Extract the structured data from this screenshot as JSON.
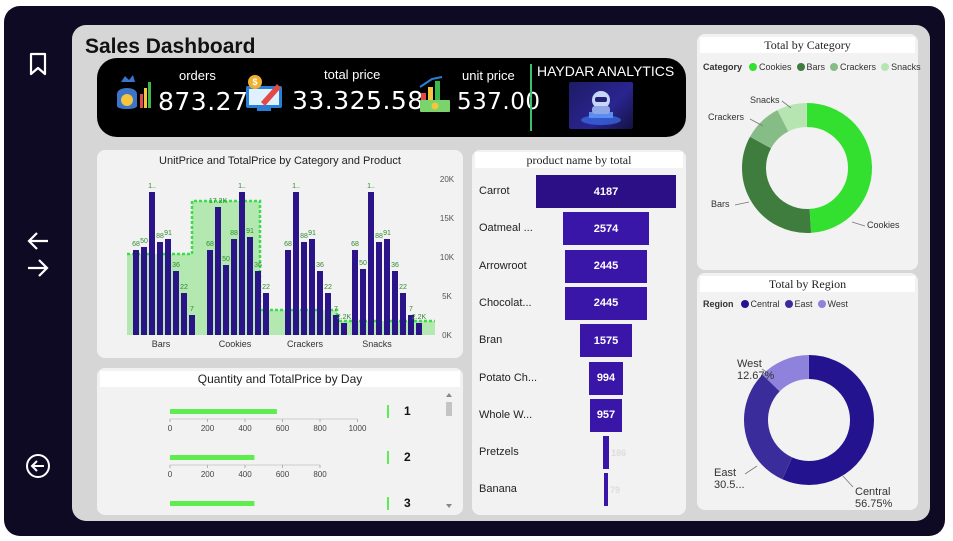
{
  "page_title": "Sales Dashboard",
  "nav": {
    "icons": [
      "bookmark-icon",
      "back-arrow-icon",
      "forward-arrow-icon",
      "exit-circle-icon"
    ]
  },
  "kpis": [
    {
      "label": "orders",
      "value": "873.27",
      "icon": "money-bag-icon"
    },
    {
      "label": "total price",
      "value": "33.325.58",
      "icon": "price-edit-icon"
    },
    {
      "label": "unit price",
      "value": "537.00",
      "icon": "cash-growth-icon"
    }
  ],
  "brand": {
    "name": "HAYDAR ANALYTICS",
    "logo": "robot-logo"
  },
  "colors": {
    "frame": "#0f0a24",
    "canvas": "#d6d6d6",
    "bar_purple": "#2b1487",
    "area_green": "#a8e6a6",
    "line_green": "#3ddc4a",
    "cookies": "#33e02f",
    "bars": "#3e7d3e",
    "crackers": "#86bd86",
    "snacks": "#b6e5b2",
    "central": "#24138f",
    "east": "#3b2c9c",
    "west": "#8f82dc",
    "day_bar": "#5ded4e"
  },
  "combo_chart": {
    "title": "UnitPrice and TotalPrice by Category and Product",
    "chart_data": {
      "type": "bar",
      "categories": [
        "Bars",
        "Cookies",
        "Crackers",
        "Snacks"
      ],
      "y2_ticks": [
        "0K",
        "5K",
        "10K",
        "15K",
        "20K"
      ],
      "data_labels": [
        {
          "category": "Bars",
          "labels": [
            "68",
            "50",
            "1..",
            "88",
            "91",
            "36",
            "22",
            "7"
          ]
        },
        {
          "category": "Cookies",
          "labels": [
            "68",
            "17.2K",
            "50",
            "88",
            "1..",
            "91",
            "36",
            "22"
          ]
        },
        {
          "category": "Crackers",
          "labels": [
            "68",
            "1..",
            "88",
            "91",
            "36",
            "22",
            "7",
            "2.2K"
          ]
        },
        {
          "category": "Snacks",
          "labels": [
            "68",
            "50",
            "1..",
            "88",
            "91",
            "36",
            "22",
            "7",
            "2.2K"
          ]
        }
      ]
    }
  },
  "funnel": {
    "title": "product name by total",
    "chart_data": {
      "type": "bar",
      "categories": [
        "Carrot",
        "Oatmeal ...",
        "Arrowroot",
        "Chocolat...",
        "Bran",
        "Potato Ch...",
        "Whole W...",
        "Pretzels",
        "Banana"
      ],
      "values": [
        4187,
        2574,
        2445,
        2445,
        1575,
        994,
        957,
        186,
        79
      ],
      "value_labels": [
        "4187",
        "2574",
        "2445",
        "2445",
        "1575",
        "994",
        "957",
        "186",
        "79"
      ]
    }
  },
  "category_donut": {
    "title": "Total by Category",
    "legend_title": "Category",
    "chart_data": {
      "type": "pie",
      "categories": [
        "Cookies",
        "Bars",
        "Crackers",
        "Snacks"
      ],
      "values": [
        49,
        34,
        9.5,
        7.5
      ]
    }
  },
  "region_donut": {
    "title": "Total by Region",
    "legend_title": "Region",
    "chart_data": {
      "type": "pie",
      "categories": [
        "Central",
        "East",
        "West"
      ],
      "values": [
        56.75,
        30.58,
        12.67
      ],
      "labels": [
        "Central\n56.75%",
        "East\n30.5...",
        "West\n12.67%"
      ]
    }
  },
  "day_panel": {
    "title": "Quantity and TotalPrice by Day",
    "rows": [
      {
        "day": "1",
        "value": 570,
        "ticks": [
          "0",
          "200",
          "400",
          "600",
          "800",
          "1000"
        ],
        "max": 1000
      },
      {
        "day": "2",
        "value": 450,
        "ticks": [
          "0",
          "200",
          "400",
          "600",
          "800"
        ],
        "max": 800
      },
      {
        "day": "3",
        "value": 450,
        "ticks": [],
        "max": 800
      }
    ]
  }
}
